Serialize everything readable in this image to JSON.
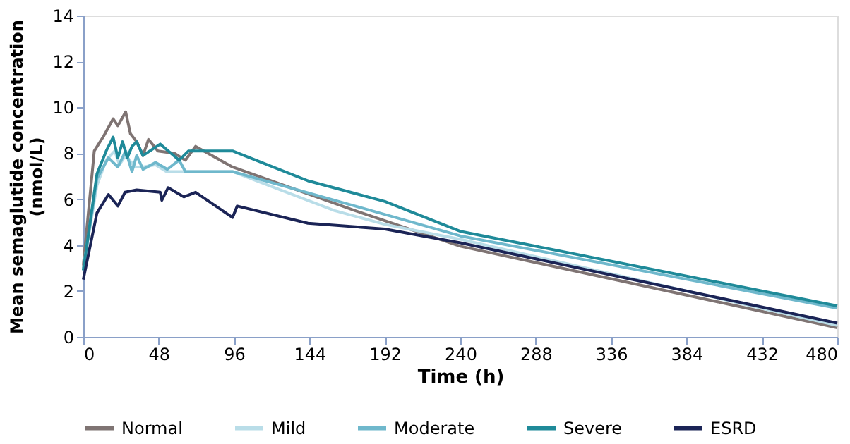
{
  "chart_data": {
    "type": "line",
    "xlabel": "Time (h)",
    "ylabel": "Mean semaglutide concentration (nmol/L)",
    "xlim": [
      0,
      480
    ],
    "xticks": [
      0,
      48,
      96,
      144,
      192,
      240,
      288,
      336,
      384,
      432,
      480
    ],
    "ylim": [
      0,
      14
    ],
    "yticks": [
      0,
      2,
      4,
      6,
      8,
      10,
      12,
      14
    ],
    "grid": false,
    "legend": "bottom",
    "marker": "none",
    "line_style": "solid",
    "series": [
      {
        "name": "Normal",
        "color": "#7f7473",
        "x": [
          0,
          7,
          13,
          19,
          22,
          27,
          30,
          34,
          38,
          41.5,
          47.5,
          58,
          65,
          71.5,
          95,
          173,
          240,
          480
        ],
        "values": [
          3.1,
          8.1,
          8.75,
          9.5,
          9.2,
          9.8,
          8.85,
          8.5,
          7.9,
          8.6,
          8.1,
          8.0,
          7.7,
          8.3,
          7.4,
          5.5,
          3.95,
          0.4
        ]
      },
      {
        "name": "Mild",
        "color": "#b9dde8",
        "x": [
          0,
          8.7,
          14.6,
          20,
          23,
          27,
          33,
          38,
          46,
          53,
          65,
          95,
          160,
          192,
          240,
          480
        ],
        "values": [
          3.0,
          6.6,
          7.7,
          8.1,
          7.5,
          7.9,
          7.4,
          7.4,
          7.5,
          7.2,
          7.2,
          7.2,
          5.5,
          4.9,
          4.25,
          0.5
        ]
      },
      {
        "name": "Moderate",
        "color": "#6fb8cc",
        "x": [
          0,
          8.7,
          16,
          22,
          27,
          31,
          34,
          38,
          46,
          53.5,
          61,
          65,
          95,
          173,
          240,
          480
        ],
        "values": [
          2.9,
          6.9,
          7.8,
          7.4,
          8.1,
          7.2,
          7.9,
          7.3,
          7.6,
          7.3,
          7.7,
          7.2,
          7.2,
          5.7,
          4.4,
          1.25
        ]
      },
      {
        "name": "Severe",
        "color": "#1f8a99",
        "x": [
          0,
          8.7,
          14.6,
          19,
          22,
          25,
          28,
          31,
          34,
          38,
          49,
          61,
          67,
          95,
          143,
          192,
          240,
          480
        ],
        "values": [
          2.9,
          7.1,
          8.1,
          8.7,
          7.8,
          8.5,
          7.8,
          8.3,
          8.5,
          7.9,
          8.4,
          7.7,
          8.1,
          8.1,
          6.8,
          5.9,
          4.6,
          1.35
        ]
      },
      {
        "name": "ESRD",
        "color": "#1b2456",
        "x": [
          0,
          8.7,
          16,
          22,
          26.6,
          34,
          49,
          50,
          54,
          64,
          71.5,
          95,
          98,
          143,
          192,
          240,
          480
        ],
        "values": [
          2.5,
          5.4,
          6.2,
          5.7,
          6.3,
          6.4,
          6.3,
          5.95,
          6.5,
          6.1,
          6.3,
          5.2,
          5.7,
          4.95,
          4.7,
          4.1,
          0.6
        ]
      }
    ]
  }
}
